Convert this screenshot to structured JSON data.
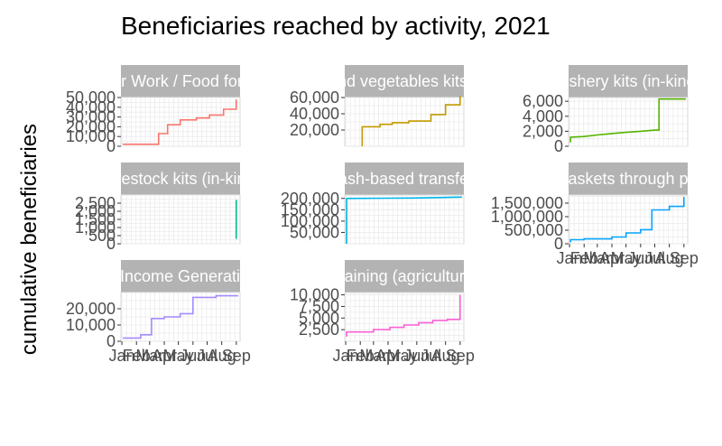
{
  "chart_data": {
    "type": "line",
    "subtype": "step",
    "title": "Beneficiaries reached by activity, 2021",
    "xlabel": "",
    "ylabel": "cumulative beneficiaries",
    "x_ticks": [
      "Jan",
      "Feb",
      "Mar",
      "Apr",
      "May",
      "Jun",
      "Jul",
      "Aug",
      "Sep"
    ],
    "grid": true,
    "legend": "none",
    "facets": [
      {
        "strip_label": "Food for Work / Food for Assets",
        "color": "#F8766D",
        "ylim": [
          0,
          50000
        ],
        "y_ticks": [
          0,
          10000,
          20000,
          30000,
          40000,
          50000
        ],
        "y_tick_labels": [
          "0",
          "10,000",
          "20,000",
          "30,000",
          "40,000",
          "50,000"
        ],
        "x_ticks_shown": false,
        "points": [
          [
            "2021-01-03",
            2000
          ],
          [
            "2021-03-20",
            2000
          ],
          [
            "2021-03-20",
            13000
          ],
          [
            "2021-04-08",
            13000
          ],
          [
            "2021-04-08",
            22000
          ],
          [
            "2021-05-05",
            22000
          ],
          [
            "2021-05-05",
            27000
          ],
          [
            "2021-06-08",
            27000
          ],
          [
            "2021-06-08",
            29000
          ],
          [
            "2021-07-06",
            29000
          ],
          [
            "2021-07-06",
            32000
          ],
          [
            "2021-08-05",
            32000
          ],
          [
            "2021-08-05",
            38000
          ],
          [
            "2021-09-01",
            38000
          ],
          [
            "2021-09-01",
            48000
          ]
        ]
      },
      {
        "strip_label": "Seeds and vegetables kits (in-kind)",
        "color": "#C49A00",
        "ylim": [
          0,
          60000
        ],
        "y_ticks": [
          20000,
          40000,
          60000
        ],
        "y_tick_labels": [
          "20,000",
          "40,000",
          "60,000"
        ],
        "x_ticks_shown": false,
        "points": [
          [
            "2021-02-05",
            0
          ],
          [
            "2021-02-05",
            24000
          ],
          [
            "2021-03-15",
            24000
          ],
          [
            "2021-03-15",
            27000
          ],
          [
            "2021-04-10",
            27000
          ],
          [
            "2021-04-10",
            29000
          ],
          [
            "2021-05-15",
            29000
          ],
          [
            "2021-05-15",
            31000
          ],
          [
            "2021-07-01",
            31000
          ],
          [
            "2021-07-01",
            39000
          ],
          [
            "2021-08-01",
            39000
          ],
          [
            "2021-08-01",
            51000
          ],
          [
            "2021-09-01",
            51000
          ],
          [
            "2021-09-01",
            62000
          ]
        ]
      },
      {
        "strip_label": "Fishery kits (in-kind)",
        "color": "#53B400",
        "ylim": [
          0,
          6500
        ],
        "y_ticks": [
          0,
          2000,
          4000,
          6000
        ],
        "y_tick_labels": [
          "0",
          "2,000",
          "4,000",
          "6,000"
        ],
        "x_ticks_shown": false,
        "points": [
          [
            "2021-01-03",
            500
          ],
          [
            "2021-01-03",
            1200
          ],
          [
            "2021-02-01",
            1300
          ],
          [
            "2021-03-01",
            1500
          ],
          [
            "2021-04-01",
            1700
          ],
          [
            "2021-05-01",
            1850
          ],
          [
            "2021-06-01",
            2000
          ],
          [
            "2021-07-01",
            2150
          ],
          [
            "2021-07-10",
            2150
          ],
          [
            "2021-07-10",
            6300
          ],
          [
            "2021-09-05",
            6300
          ]
        ]
      },
      {
        "strip_label": "Livestock kits (in-kind)",
        "color": "#00C094",
        "ylim": [
          0,
          3000
        ],
        "y_ticks": [
          0,
          500,
          1000,
          1500,
          2000,
          2500
        ],
        "y_tick_labels": [
          "0",
          "500",
          "1,000",
          "1,500",
          "2,000",
          "2,500"
        ],
        "x_ticks_shown": false,
        "points": [
          [
            "2021-09-01",
            300
          ],
          [
            "2021-09-01",
            2700
          ]
        ]
      },
      {
        "strip_label": "Cash-based transfers",
        "color": "#00B6EB",
        "ylim": [
          0,
          215000
        ],
        "y_ticks": [
          50000,
          100000,
          150000,
          200000
        ],
        "y_tick_labels": [
          "50,000",
          "100,000",
          "150,000",
          "200,000"
        ],
        "x_ticks_shown": false,
        "points": [
          [
            "2021-01-03",
            0
          ],
          [
            "2021-01-03",
            200000
          ],
          [
            "2021-04-01",
            201000
          ],
          [
            "2021-06-01",
            202000
          ],
          [
            "2021-07-15",
            204000
          ],
          [
            "2021-09-05",
            206000
          ]
        ]
      },
      {
        "strip_label": "Food baskets through partners",
        "color": "#06A4FF",
        "ylim": [
          0,
          1800000
        ],
        "y_ticks": [
          0,
          500000,
          1000000,
          1500000
        ],
        "y_tick_labels": [
          "0",
          "500,000",
          "1,000,000",
          "1,500,000"
        ],
        "x_ticks_shown": true,
        "points": [
          [
            "2021-01-03",
            50000
          ],
          [
            "2021-01-03",
            150000
          ],
          [
            "2021-02-01",
            150000
          ],
          [
            "2021-02-01",
            180000
          ],
          [
            "2021-04-01",
            180000
          ],
          [
            "2021-04-01",
            250000
          ],
          [
            "2021-05-01",
            250000
          ],
          [
            "2021-05-01",
            400000
          ],
          [
            "2021-06-01",
            400000
          ],
          [
            "2021-06-01",
            520000
          ],
          [
            "2021-06-25",
            520000
          ],
          [
            "2021-06-25",
            1250000
          ],
          [
            "2021-08-01",
            1250000
          ],
          [
            "2021-08-01",
            1380000
          ],
          [
            "2021-09-01",
            1380000
          ],
          [
            "2021-09-01",
            1730000
          ]
        ]
      },
      {
        "strip_label": "Support for Income Generating Activities",
        "color": "#A58AFF",
        "ylim": [
          0,
          30000
        ],
        "y_ticks": [
          0,
          10000,
          20000
        ],
        "y_tick_labels": [
          "0",
          "10,000",
          "20,000"
        ],
        "x_ticks_shown": true,
        "points": [
          [
            "2021-01-03",
            2000
          ],
          [
            "2021-02-10",
            2000
          ],
          [
            "2021-02-10",
            4000
          ],
          [
            "2021-03-05",
            4000
          ],
          [
            "2021-03-05",
            14000
          ],
          [
            "2021-04-01",
            14000
          ],
          [
            "2021-04-01",
            15000
          ],
          [
            "2021-05-05",
            15000
          ],
          [
            "2021-05-05",
            17000
          ],
          [
            "2021-06-01",
            17000
          ],
          [
            "2021-06-01",
            27000
          ],
          [
            "2021-07-20",
            27000
          ],
          [
            "2021-07-20",
            28000
          ],
          [
            "2021-09-05",
            28000
          ]
        ]
      },
      {
        "strip_label": "Training (agriculture)",
        "color": "#FB61D7",
        "ylim": [
          0,
          10500
        ],
        "y_ticks": [
          2500,
          5000,
          7500,
          10000
        ],
        "y_tick_labels": [
          "2,500",
          "5,000",
          "7,500",
          "10,000"
        ],
        "x_ticks_shown": true,
        "points": [
          [
            "2021-01-03",
            1000
          ],
          [
            "2021-01-03",
            2000
          ],
          [
            "2021-03-01",
            2000
          ],
          [
            "2021-03-01",
            2500
          ],
          [
            "2021-04-05",
            2500
          ],
          [
            "2021-04-05",
            3000
          ],
          [
            "2021-05-05",
            3000
          ],
          [
            "2021-05-05",
            3500
          ],
          [
            "2021-06-05",
            3500
          ],
          [
            "2021-06-05",
            4000
          ],
          [
            "2021-07-05",
            4000
          ],
          [
            "2021-07-05",
            4500
          ],
          [
            "2021-08-05",
            4500
          ],
          [
            "2021-08-05",
            4700
          ],
          [
            "2021-09-01",
            4700
          ],
          [
            "2021-09-01",
            10000
          ]
        ]
      }
    ]
  }
}
